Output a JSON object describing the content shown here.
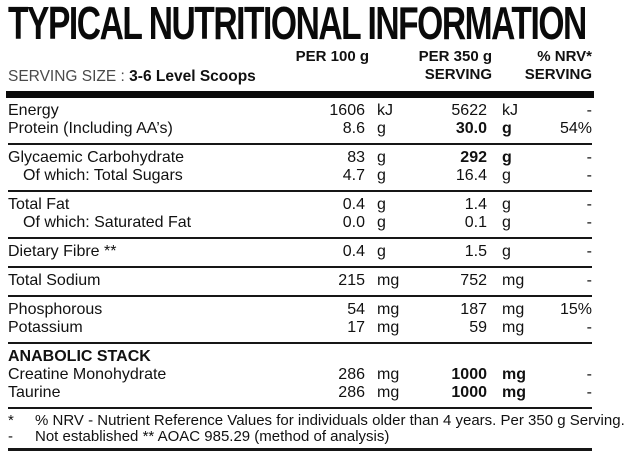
{
  "title": "TYPICAL NUTRITIONAL INFORMATION",
  "header": {
    "serving_size_label": "SERVING SIZE :",
    "serving_size_value": "3-6 Level Scoops",
    "col_per100": "PER 100 g",
    "col_per350_line1": "PER 350 g",
    "col_per350_line2": "SERVING",
    "col_nrv_line1": "% NRV*",
    "col_nrv_line2": "SERVING"
  },
  "groups": [
    {
      "rows": [
        {
          "label": "Energy",
          "indent": false,
          "section": false,
          "v100": "1606",
          "u100": "kJ",
          "v350": "5622",
          "u350": "kJ",
          "nrv": "-",
          "bold": false
        },
        {
          "label": "Protein (Including AA’s)",
          "indent": false,
          "section": false,
          "v100": "8.6",
          "u100": "g",
          "v350": "30.0",
          "u350": "g",
          "nrv": "54%",
          "bold": true
        }
      ]
    },
    {
      "rows": [
        {
          "label": "Glycaemic Carbohydrate",
          "indent": false,
          "section": false,
          "v100": "83",
          "u100": "g",
          "v350": "292",
          "u350": "g",
          "nrv": "-",
          "bold": true
        },
        {
          "label": "Of which: Total Sugars",
          "indent": true,
          "section": false,
          "v100": "4.7",
          "u100": "g",
          "v350": "16.4",
          "u350": "g",
          "nrv": "-",
          "bold": false
        }
      ]
    },
    {
      "rows": [
        {
          "label": "Total Fat",
          "indent": false,
          "section": false,
          "v100": "0.4",
          "u100": "g",
          "v350": "1.4",
          "u350": "g",
          "nrv": "-",
          "bold": false
        },
        {
          "label": "Of which: Saturated Fat",
          "indent": true,
          "section": false,
          "v100": "0.0",
          "u100": "g",
          "v350": "0.1",
          "u350": "g",
          "nrv": "-",
          "bold": false
        }
      ]
    },
    {
      "rows": [
        {
          "label": "Dietary Fibre **",
          "indent": false,
          "section": false,
          "v100": "0.4",
          "u100": "g",
          "v350": "1.5",
          "u350": "g",
          "nrv": "-",
          "bold": false
        }
      ]
    },
    {
      "rows": [
        {
          "label": "Total Sodium",
          "indent": false,
          "section": false,
          "v100": "215",
          "u100": "mg",
          "v350": "752",
          "u350": "mg",
          "nrv": "-",
          "bold": false
        }
      ]
    },
    {
      "rows": [
        {
          "label": "Phosphorous",
          "indent": false,
          "section": false,
          "v100": "54",
          "u100": "mg",
          "v350": "187",
          "u350": "mg",
          "nrv": "15%",
          "bold": false
        },
        {
          "label": "Potassium",
          "indent": false,
          "section": false,
          "v100": "17",
          "u100": "mg",
          "v350": "59",
          "u350": "mg",
          "nrv": "-",
          "bold": false
        }
      ]
    },
    {
      "rows": [
        {
          "label": "ANABOLIC STACK",
          "indent": false,
          "section": true,
          "v100": "",
          "u100": "",
          "v350": "",
          "u350": "",
          "nrv": "",
          "bold": false
        },
        {
          "label": "Creatine Monohydrate",
          "indent": false,
          "section": false,
          "v100": "286",
          "u100": "mg",
          "v350": "1000",
          "u350": "mg",
          "nrv": "-",
          "bold": true
        },
        {
          "label": "Taurine",
          "indent": false,
          "section": false,
          "v100": "286",
          "u100": "mg",
          "v350": "1000",
          "u350": "mg",
          "nrv": "-",
          "bold": true
        }
      ]
    }
  ],
  "footnotes": [
    {
      "marker": "*",
      "text": "% NRV - Nutrient Reference Values for individuals older than 4 years. Per 350 g Serving."
    },
    {
      "marker": "-",
      "text": "Not established ** AOAC 985.29 (method of analysis)"
    }
  ]
}
